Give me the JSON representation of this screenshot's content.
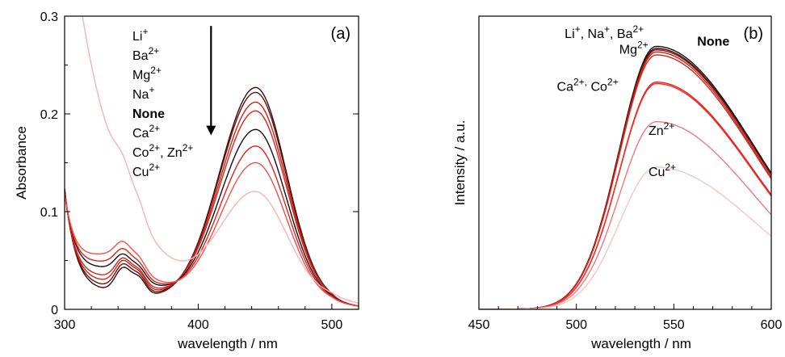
{
  "chart_data": [
    {
      "type": "line",
      "panel": "(a)",
      "xlabel": "wavelength / nm",
      "ylabel": "Absorbance",
      "xlim": [
        300,
        520
      ],
      "ylim": [
        0,
        0.3
      ],
      "xticks": [
        300,
        400,
        500
      ],
      "yticks": [
        0,
        0.1,
        0.2,
        0.3
      ],
      "ytick_labels": [
        "0",
        "0.1",
        "0.2",
        "0.3"
      ],
      "grid": false,
      "legend": {
        "placement": "top-left",
        "entries": [
          {
            "base": "Li",
            "sup": "+",
            "bold": false
          },
          {
            "base": "Ba",
            "sup": "2+",
            "bold": false
          },
          {
            "base": "Mg",
            "sup": "2+",
            "bold": false
          },
          {
            "base": "Na",
            "sup": "+",
            "bold": false
          },
          {
            "base": "None",
            "sup": "",
            "bold": true
          },
          {
            "base": "Ca",
            "sup": "2+",
            "bold": false
          },
          {
            "base": "Co",
            "sup": "2+",
            "base2": ", Zn",
            "sup2": "2+",
            "bold": false
          },
          {
            "base": "Cu",
            "sup": "2+",
            "bold": false
          }
        ]
      },
      "arrow": {
        "x": 412,
        "y_from": 0.29,
        "y_to": 0.178,
        "direction": "down"
      },
      "series": [
        {
          "color": "#3a0a0a",
          "peak": 0.221,
          "min": 0.011,
          "shoulder": 0.036,
          "start": 0.113
        },
        {
          "color": "#6b1010",
          "peak": 0.216,
          "min": 0.015,
          "shoulder": 0.04,
          "start": 0.11
        },
        {
          "color": "#c0281c",
          "peak": 0.206,
          "min": 0.02,
          "shoulder": 0.044,
          "start": 0.106
        },
        {
          "color": "#d9251c",
          "peak": 0.197,
          "min": 0.025,
          "shoulder": 0.047,
          "start": 0.103
        },
        {
          "color": "#111111",
          "peak": 0.178,
          "min": 0.034,
          "shoulder": 0.052,
          "start": 0.1
        },
        {
          "color": "#e8201a",
          "peak": 0.161,
          "min": 0.04,
          "shoulder": 0.058,
          "start": 0.096
        },
        {
          "color": "#ee5050",
          "peak": 0.144,
          "min": 0.048,
          "shoulder": 0.066,
          "start": 0.092
        },
        {
          "color": "#f7b3b3",
          "peak": 0.106,
          "min": 0.038,
          "shoulder": 0.06,
          "start": 0.42
        }
      ]
    },
    {
      "type": "line",
      "panel": "(b)",
      "xlabel": "wavelength / nm",
      "ylabel": "Intensity / a.u.",
      "xlim": [
        450,
        600
      ],
      "ylim": [
        0,
        1.0
      ],
      "xticks": [
        450,
        500,
        550,
        600
      ],
      "yticks": [],
      "grid": false,
      "labels": [
        {
          "parts": [
            [
              "Li",
              "+"
            ],
            [
              ", Na",
              "+"
            ],
            [
              ", Ba",
              "2+"
            ]
          ],
          "x": 494,
          "y": 0.925,
          "bold": false
        },
        {
          "parts": [
            [
              "Mg",
              "2+"
            ]
          ],
          "x": 522,
          "y": 0.872,
          "bold": false
        },
        {
          "parts": [
            [
              "None",
              ""
            ]
          ],
          "x": 562,
          "y": 0.9,
          "bold": true
        },
        {
          "parts": [
            [
              "Ca",
              "2+,"
            ],
            [
              " Co",
              "2+"
            ]
          ],
          "x": 490,
          "y": 0.745,
          "bold": false
        },
        {
          "parts": [
            [
              "Zn",
              "2+"
            ]
          ],
          "x": 537,
          "y": 0.595,
          "bold": false
        },
        {
          "parts": [
            [
              "Cu",
              "2+"
            ]
          ],
          "x": 537,
          "y": 0.455,
          "bold": false
        }
      ],
      "series": [
        {
          "color": "#111111",
          "peak": 0.897,
          "end": 0.475
        },
        {
          "color": "#3a0a0a",
          "peak": 0.89,
          "end": 0.47
        },
        {
          "color": "#8a1510",
          "peak": 0.885,
          "end": 0.468
        },
        {
          "color": "#c0281c",
          "peak": 0.878,
          "end": 0.46
        },
        {
          "color": "#d9251c",
          "peak": 0.868,
          "end": 0.455
        },
        {
          "color": "#e8201a",
          "peak": 0.775,
          "end": 0.4
        },
        {
          "color": "#ee2a2a",
          "peak": 0.77,
          "end": 0.395
        },
        {
          "color": "#ef7a7a",
          "peak": 0.64,
          "end": 0.33
        },
        {
          "color": "#f8c4c4",
          "peak": 0.485,
          "end": 0.255
        }
      ]
    }
  ]
}
